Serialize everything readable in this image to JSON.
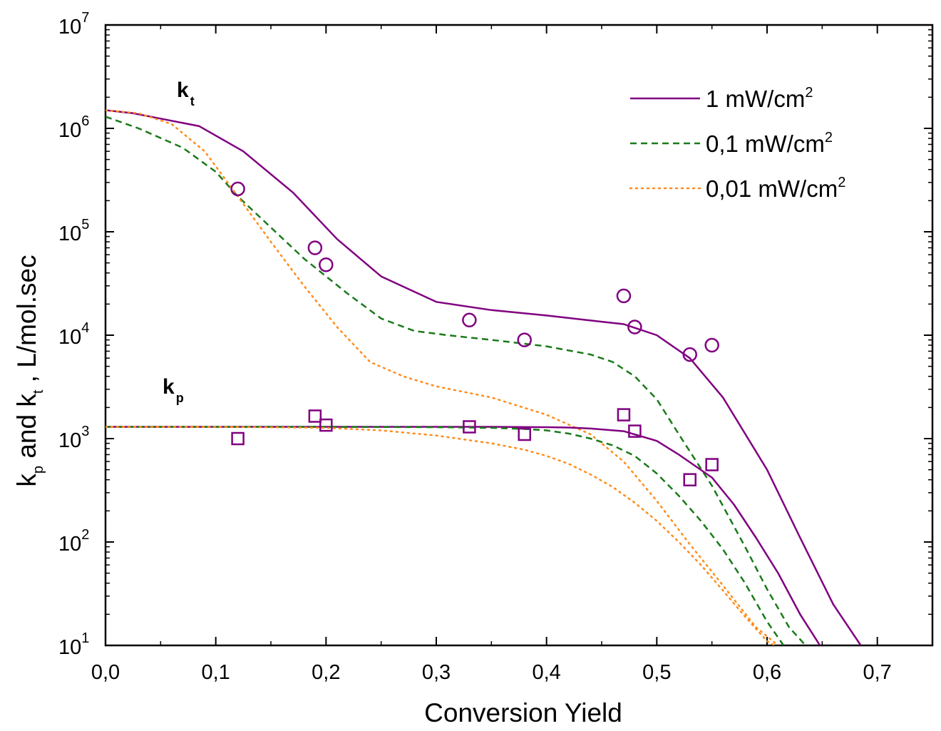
{
  "chart_data": {
    "type": "line",
    "xlabel": "Conversion Yield",
    "ylabel": {
      "k1": "k",
      "s1": "p",
      "mid": " and k",
      "s2": "t",
      "tail": " , L/mol.sec"
    },
    "xlim": [
      0,
      0.75
    ],
    "ylim": [
      10,
      10000000
    ],
    "yscale": "log",
    "grid": false,
    "legend_position": "top-right",
    "x_ticks": [
      "0,0",
      "0,1",
      "0,2",
      "0,3",
      "0,4",
      "0,5",
      "0,6",
      "0,7"
    ],
    "y_ticks": [
      {
        "base": "10",
        "exp": "1"
      },
      {
        "base": "10",
        "exp": "2"
      },
      {
        "base": "10",
        "exp": "3"
      },
      {
        "base": "10",
        "exp": "4"
      },
      {
        "base": "10",
        "exp": "5"
      },
      {
        "base": "10",
        "exp": "6"
      },
      {
        "base": "10",
        "exp": "7"
      }
    ],
    "annotations": {
      "kt": {
        "main": "k",
        "sub": "t"
      },
      "kp": {
        "main": "k",
        "sub": "p"
      }
    },
    "legend": [
      {
        "label": "1 mW/cm",
        "sup": "2",
        "color": "#800080",
        "style": "solid"
      },
      {
        "label": "0,1 mW/cm",
        "sup": "2",
        "color": "#1a7a1a",
        "style": "dashed"
      },
      {
        "label": "0,01 mW/cm",
        "sup": "2",
        "color": "#ff8c1a",
        "style": "dotted"
      }
    ],
    "series": [
      {
        "name": "1 mW/cm2",
        "group": "kt",
        "color": "#800080",
        "style": "solid",
        "x": [
          0,
          0.025,
          0.085,
          0.125,
          0.17,
          0.21,
          0.25,
          0.3,
          0.35,
          0.4,
          0.45,
          0.47,
          0.5,
          0.53,
          0.56,
          0.6,
          0.63,
          0.66,
          0.685
        ],
        "y": [
          1500000,
          1400000,
          1050000,
          600000,
          240000,
          85000,
          37000,
          21000,
          17500,
          15500,
          13500,
          12800,
          10000,
          6000,
          2500,
          500,
          110,
          25,
          10
        ]
      },
      {
        "name": "0,1 mW/cm2",
        "group": "kt",
        "color": "#1a7a1a",
        "style": "dashed",
        "x": [
          0,
          0.03,
          0.07,
          0.1,
          0.12,
          0.15,
          0.18,
          0.22,
          0.25,
          0.28,
          0.31,
          0.35,
          0.4,
          0.44,
          0.46,
          0.48,
          0.5,
          0.52,
          0.55,
          0.58,
          0.6,
          0.62,
          0.635
        ],
        "y": [
          1300000,
          1000000,
          650000,
          380000,
          220000,
          110000,
          55000,
          25000,
          14500,
          11000,
          10000,
          9000,
          7800,
          6500,
          5500,
          4000,
          2400,
          1100,
          350,
          90,
          35,
          15,
          10
        ]
      },
      {
        "name": "0,01 mW/cm2",
        "group": "kt",
        "color": "#ff8c1a",
        "style": "dotted",
        "x": [
          0,
          0.03,
          0.06,
          0.09,
          0.12,
          0.15,
          0.18,
          0.21,
          0.24,
          0.27,
          0.3,
          0.35,
          0.4,
          0.44,
          0.47,
          0.5,
          0.53,
          0.56,
          0.59,
          0.61
        ],
        "y": [
          1500000,
          1400000,
          1100000,
          600000,
          220000,
          80000,
          30000,
          12000,
          5500,
          4000,
          3200,
          2500,
          1700,
          1100,
          600,
          250,
          95,
          38,
          15,
          10
        ]
      },
      {
        "name": "1 mW/cm2",
        "group": "kp",
        "color": "#800080",
        "style": "solid",
        "x": [
          0,
          0.1,
          0.2,
          0.3,
          0.35,
          0.4,
          0.42,
          0.44,
          0.47,
          0.5,
          0.52,
          0.55,
          0.57,
          0.59,
          0.61,
          0.63,
          0.648
        ],
        "y": [
          1300,
          1300,
          1300,
          1300,
          1300,
          1290,
          1280,
          1250,
          1180,
          950,
          700,
          420,
          230,
          110,
          50,
          20,
          10
        ]
      },
      {
        "name": "0,1 mW/cm2",
        "group": "kp",
        "color": "#1a7a1a",
        "style": "dashed",
        "x": [
          0,
          0.1,
          0.2,
          0.3,
          0.35,
          0.38,
          0.4,
          0.42,
          0.44,
          0.46,
          0.48,
          0.5,
          0.52,
          0.54,
          0.56,
          0.58,
          0.6,
          0.615
        ],
        "y": [
          1300,
          1300,
          1300,
          1290,
          1270,
          1240,
          1200,
          1120,
          1000,
          860,
          680,
          460,
          280,
          160,
          85,
          40,
          17,
          10
        ]
      },
      {
        "name": "0,01 mW/cm2",
        "group": "kp",
        "color": "#ff8c1a",
        "style": "dotted",
        "x": [
          0,
          0.1,
          0.2,
          0.25,
          0.3,
          0.35,
          0.38,
          0.4,
          0.42,
          0.44,
          0.46,
          0.48,
          0.5,
          0.52,
          0.54,
          0.56,
          0.58,
          0.6,
          0.607
        ],
        "y": [
          1300,
          1300,
          1270,
          1200,
          1070,
          900,
          780,
          680,
          570,
          450,
          340,
          240,
          160,
          100,
          60,
          34,
          19,
          11,
          10
        ]
      }
    ],
    "points": [
      {
        "name": "kt data",
        "marker": "circle",
        "color": "#800080",
        "x": [
          0.12,
          0.19,
          0.2,
          0.33,
          0.38,
          0.47,
          0.48,
          0.53,
          0.55
        ],
        "y": [
          260000,
          70000,
          48000,
          14000,
          9000,
          24000,
          12000,
          6500,
          8000
        ]
      },
      {
        "name": "kp data",
        "marker": "square",
        "color": "#800080",
        "x": [
          0.12,
          0.19,
          0.2,
          0.33,
          0.38,
          0.47,
          0.48,
          0.53,
          0.55
        ],
        "y": [
          1000,
          1650,
          1350,
          1300,
          1100,
          1700,
          1180,
          400,
          560
        ]
      }
    ]
  }
}
